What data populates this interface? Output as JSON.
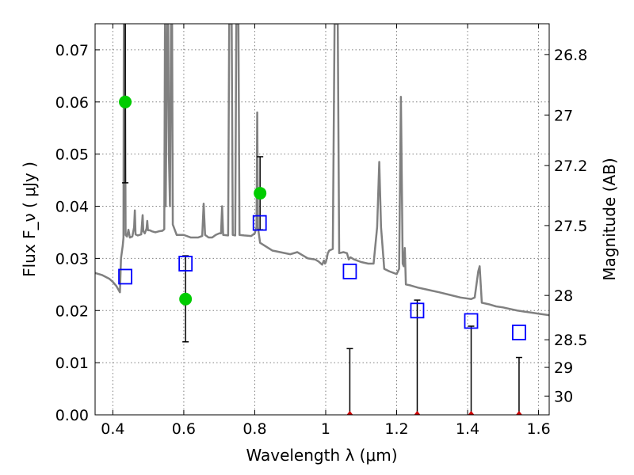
{
  "chart_data": {
    "type": "line",
    "xlabel": "Wavelength  λ (μm)",
    "ylabel": "Flux  F_ν  ( μJy )",
    "ylabel_right": "Magnitude (AB)",
    "xlim": [
      0.35,
      1.63
    ],
    "ylim": [
      0,
      0.075
    ],
    "x_ticks": [
      0.4,
      0.6,
      0.8,
      1.0,
      1.2,
      1.4,
      1.6
    ],
    "x_tick_labels": [
      "0.4",
      "0.6",
      "0.8",
      "1",
      "1.2",
      "1.4",
      "1.6"
    ],
    "y_ticks": [
      0,
      0.01,
      0.02,
      0.03,
      0.04,
      0.05,
      0.06,
      0.07
    ],
    "y_tick_labels": [
      "0.00",
      "0.01",
      "0.02",
      "0.03",
      "0.04",
      "0.05",
      "0.06",
      "0.07"
    ],
    "right_ticks": [
      {
        "label": "26.8",
        "flux": 0.0691
      },
      {
        "label": "27",
        "flux": 0.0575
      },
      {
        "label": "27.2",
        "flux": 0.0478
      },
      {
        "label": "27.5",
        "flux": 0.0363
      },
      {
        "label": "28",
        "flux": 0.0229
      },
      {
        "label": "28.5",
        "flux": 0.0144
      },
      {
        "label": "29",
        "flux": 0.0091
      },
      {
        "label": "30",
        "flux": 0.0036
      }
    ],
    "grid": true,
    "colors": {
      "model": "#808080",
      "photometry": "#00cc00",
      "model_phot": "#0000ff",
      "upper_limit": "#cc0000",
      "error": "#000000"
    },
    "series": [
      {
        "kind": "model_spectrum",
        "points": [
          [
            0.35,
            0.0272
          ],
          [
            0.37,
            0.0268
          ],
          [
            0.39,
            0.0261
          ],
          [
            0.4,
            0.0255
          ],
          [
            0.41,
            0.0247
          ],
          [
            0.42,
            0.0235
          ],
          [
            0.423,
            0.03
          ],
          [
            0.428,
            0.0325
          ],
          [
            0.43,
            0.034
          ],
          [
            0.431,
            0.075
          ],
          [
            0.434,
            0.075
          ],
          [
            0.436,
            0.0345
          ],
          [
            0.44,
            0.0342
          ],
          [
            0.444,
            0.0355
          ],
          [
            0.448,
            0.034
          ],
          [
            0.455,
            0.0342
          ],
          [
            0.46,
            0.036
          ],
          [
            0.462,
            0.0392
          ],
          [
            0.464,
            0.0346
          ],
          [
            0.47,
            0.0344
          ],
          [
            0.48,
            0.0346
          ],
          [
            0.484,
            0.0383
          ],
          [
            0.486,
            0.0352
          ],
          [
            0.49,
            0.0348
          ],
          [
            0.495,
            0.0357
          ],
          [
            0.497,
            0.0372
          ],
          [
            0.499,
            0.0354
          ],
          [
            0.502,
            0.0354
          ],
          [
            0.504,
            0.0354
          ],
          [
            0.51,
            0.0352
          ],
          [
            0.52,
            0.035
          ],
          [
            0.53,
            0.0352
          ],
          [
            0.54,
            0.0353
          ],
          [
            0.545,
            0.0356
          ],
          [
            0.547,
            0.075
          ],
          [
            0.549,
            0.04
          ],
          [
            0.551,
            0.055
          ],
          [
            0.553,
            0.075
          ],
          [
            0.556,
            0.075
          ],
          [
            0.558,
            0.05
          ],
          [
            0.561,
            0.04
          ],
          [
            0.564,
            0.075
          ],
          [
            0.567,
            0.075
          ],
          [
            0.569,
            0.0365
          ],
          [
            0.58,
            0.0345
          ],
          [
            0.6,
            0.0345
          ],
          [
            0.62,
            0.034
          ],
          [
            0.64,
            0.034
          ],
          [
            0.652,
            0.0343
          ],
          [
            0.656,
            0.0405
          ],
          [
            0.66,
            0.0345
          ],
          [
            0.67,
            0.034
          ],
          [
            0.68,
            0.034
          ],
          [
            0.69,
            0.0345
          ],
          [
            0.7,
            0.0348
          ],
          [
            0.705,
            0.0348
          ],
          [
            0.708,
            0.04
          ],
          [
            0.711,
            0.0345
          ],
          [
            0.725,
            0.0344
          ],
          [
            0.728,
            0.075
          ],
          [
            0.735,
            0.075
          ],
          [
            0.738,
            0.0345
          ],
          [
            0.745,
            0.0344
          ],
          [
            0.748,
            0.075
          ],
          [
            0.754,
            0.075
          ],
          [
            0.757,
            0.0345
          ],
          [
            0.77,
            0.0344
          ],
          [
            0.79,
            0.0343
          ],
          [
            0.8,
            0.0348
          ],
          [
            0.805,
            0.036
          ],
          [
            0.807,
            0.058
          ],
          [
            0.809,
            0.036
          ],
          [
            0.815,
            0.033
          ],
          [
            0.85,
            0.0315
          ],
          [
            0.9,
            0.0308
          ],
          [
            0.92,
            0.0312
          ],
          [
            0.95,
            0.03
          ],
          [
            0.97,
            0.0298
          ],
          [
            0.98,
            0.0294
          ],
          [
            0.99,
            0.0288
          ],
          [
            0.995,
            0.0296
          ],
          [
            0.998,
            0.029
          ],
          [
            1.0,
            0.0292
          ],
          [
            1.003,
            0.03
          ],
          [
            1.006,
            0.031
          ],
          [
            1.01,
            0.0315
          ],
          [
            1.02,
            0.0318
          ],
          [
            1.025,
            0.075
          ],
          [
            1.034,
            0.075
          ],
          [
            1.038,
            0.031
          ],
          [
            1.05,
            0.0312
          ],
          [
            1.06,
            0.031
          ],
          [
            1.065,
            0.0298
          ],
          [
            1.07,
            0.0302
          ],
          [
            1.08,
            0.0298
          ],
          [
            1.1,
            0.0293
          ],
          [
            1.12,
            0.029
          ],
          [
            1.135,
            0.029
          ],
          [
            1.145,
            0.036
          ],
          [
            1.151,
            0.0485
          ],
          [
            1.156,
            0.036
          ],
          [
            1.165,
            0.028
          ],
          [
            1.18,
            0.0275
          ],
          [
            1.2,
            0.027
          ],
          [
            1.207,
            0.028
          ],
          [
            1.212,
            0.061
          ],
          [
            1.217,
            0.029
          ],
          [
            1.22,
            0.0285
          ],
          [
            1.223,
            0.032
          ],
          [
            1.226,
            0.025
          ],
          [
            1.24,
            0.0248
          ],
          [
            1.26,
            0.0244
          ],
          [
            1.28,
            0.0241
          ],
          [
            1.3,
            0.0238
          ],
          [
            1.32,
            0.0235
          ],
          [
            1.35,
            0.023
          ],
          [
            1.38,
            0.0225
          ],
          [
            1.41,
            0.0222
          ],
          [
            1.42,
            0.0225
          ],
          [
            1.425,
            0.025
          ],
          [
            1.43,
            0.0275
          ],
          [
            1.434,
            0.0285
          ],
          [
            1.437,
            0.025
          ],
          [
            1.44,
            0.0215
          ],
          [
            1.46,
            0.0212
          ],
          [
            1.48,
            0.0208
          ],
          [
            1.5,
            0.0206
          ],
          [
            1.52,
            0.0203
          ],
          [
            1.54,
            0.02
          ],
          [
            1.56,
            0.0198
          ],
          [
            1.58,
            0.0196
          ],
          [
            1.6,
            0.0194
          ],
          [
            1.63,
            0.0191
          ]
        ]
      },
      {
        "kind": "observed_photometry",
        "points": [
          {
            "x": 0.435,
            "y": 0.06,
            "lo": 0.0445,
            "hi": 0.075
          },
          {
            "x": 0.605,
            "y": 0.0222,
            "lo": 0.014,
            "hi": 0.0305
          },
          {
            "x": 0.815,
            "y": 0.0425,
            "lo": 0.0355,
            "hi": 0.0495
          }
        ]
      },
      {
        "kind": "model_photometry",
        "points": [
          {
            "x": 0.435,
            "y": 0.0265
          },
          {
            "x": 0.605,
            "y": 0.029
          },
          {
            "x": 0.814,
            "y": 0.0368
          },
          {
            "x": 1.068,
            "y": 0.0275
          },
          {
            "x": 1.258,
            "y": 0.02
          },
          {
            "x": 1.41,
            "y": 0.018
          },
          {
            "x": 1.545,
            "y": 0.0158
          }
        ]
      },
      {
        "kind": "upper_limits",
        "points": [
          {
            "x": 1.068,
            "y": 0,
            "hi": 0.0127
          },
          {
            "x": 1.258,
            "y": 0,
            "hi": 0.022
          },
          {
            "x": 1.41,
            "y": 0,
            "hi": 0.017
          },
          {
            "x": 1.545,
            "y": 0,
            "hi": 0.011
          }
        ]
      }
    ]
  }
}
